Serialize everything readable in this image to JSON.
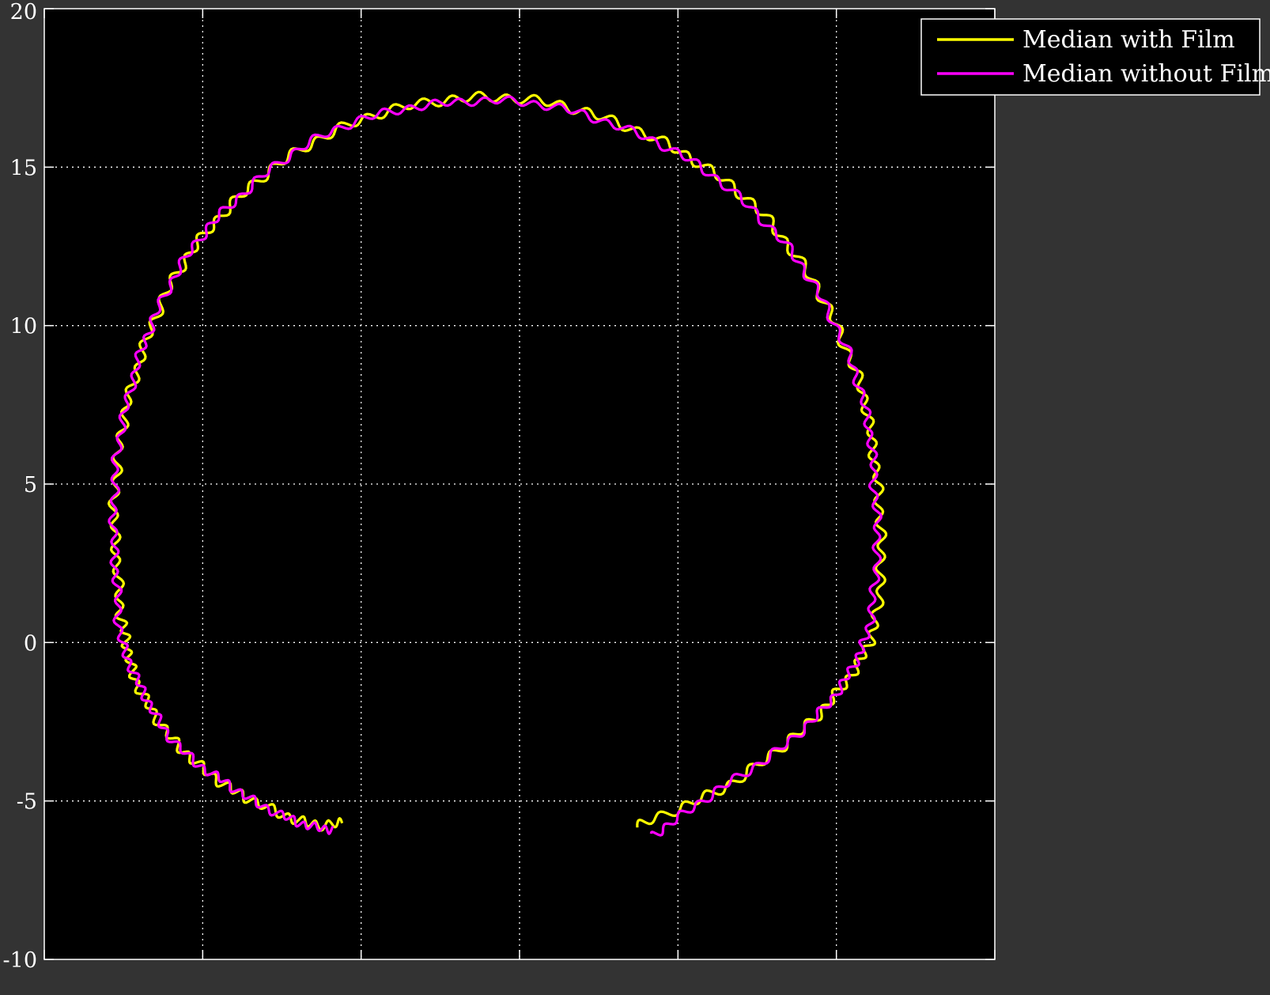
{
  "chart_data": {
    "type": "line",
    "title": "",
    "xlabel": "",
    "ylabel": "",
    "xlim": [
      -12,
      18
    ],
    "ylim": [
      -10,
      20
    ],
    "x_ticks": [
      -12,
      -7,
      -2,
      3,
      8,
      13,
      18
    ],
    "y_ticks": [
      -10,
      -5,
      0,
      5,
      10,
      15,
      20
    ],
    "y_tick_labels": [
      "-10",
      "-5",
      "0",
      "5",
      "10",
      "15",
      "20"
    ],
    "grid": true,
    "legend_position": "top-right",
    "colors": {
      "background": "#333333",
      "axes": "#000000",
      "axis_line": "#ffffff",
      "grid": "#ffffff"
    },
    "series": [
      {
        "name": "Median with Film",
        "color": "#ffff00",
        "points": [
          [
            -2.6,
            -5.7
          ],
          [
            -3.4,
            -5.75
          ],
          [
            -4.3,
            -5.5
          ],
          [
            -5.4,
            -5.0
          ],
          [
            -6.3,
            -4.5
          ],
          [
            -7.2,
            -3.8
          ],
          [
            -8.0,
            -3.0
          ],
          [
            -8.7,
            -2.0
          ],
          [
            -9.2,
            -1.0
          ],
          [
            -9.4,
            0.0
          ],
          [
            -9.6,
            1.0
          ],
          [
            -9.7,
            2.5
          ],
          [
            -9.8,
            4.0
          ],
          [
            -9.7,
            5.5
          ],
          [
            -9.5,
            7.0
          ],
          [
            -9.1,
            8.5
          ],
          [
            -8.6,
            10.0
          ],
          [
            -7.9,
            11.5
          ],
          [
            -7.0,
            12.8
          ],
          [
            -5.9,
            14.0
          ],
          [
            -4.6,
            15.1
          ],
          [
            -3.1,
            16.0
          ],
          [
            -1.4,
            16.7
          ],
          [
            0.5,
            17.1
          ],
          [
            2.3,
            17.2
          ],
          [
            4.1,
            17.0
          ],
          [
            5.8,
            16.5
          ],
          [
            7.5,
            15.8
          ],
          [
            9.0,
            14.9
          ],
          [
            10.4,
            13.8
          ],
          [
            11.5,
            12.5
          ],
          [
            12.5,
            11.0
          ],
          [
            13.2,
            9.5
          ],
          [
            13.8,
            8.0
          ],
          [
            14.1,
            6.5
          ],
          [
            14.3,
            5.0
          ],
          [
            14.4,
            3.5
          ],
          [
            14.4,
            2.0
          ],
          [
            14.2,
            0.5
          ],
          [
            13.8,
            -0.5
          ],
          [
            13.1,
            -1.5
          ],
          [
            12.2,
            -2.5
          ],
          [
            11.0,
            -3.5
          ],
          [
            9.6,
            -4.5
          ],
          [
            8.1,
            -5.2
          ],
          [
            6.7,
            -5.8
          ]
        ]
      },
      {
        "name": "Median without Film",
        "color": "#ff00ff",
        "points": [
          [
            -2.9,
            -5.9
          ],
          [
            -3.6,
            -5.8
          ],
          [
            -4.4,
            -5.5
          ],
          [
            -5.4,
            -5.0
          ],
          [
            -6.3,
            -4.4
          ],
          [
            -7.2,
            -3.8
          ],
          [
            -8.1,
            -2.9
          ],
          [
            -8.7,
            -1.9
          ],
          [
            -9.2,
            -0.9
          ],
          [
            -9.6,
            0.2
          ],
          [
            -9.7,
            1.6
          ],
          [
            -9.8,
            3.0
          ],
          [
            -9.8,
            4.5
          ],
          [
            -9.7,
            6.0
          ],
          [
            -9.4,
            7.5
          ],
          [
            -9.0,
            9.0
          ],
          [
            -8.5,
            10.3
          ],
          [
            -7.8,
            11.7
          ],
          [
            -6.9,
            13.0
          ],
          [
            -5.8,
            14.1
          ],
          [
            -4.5,
            15.2
          ],
          [
            -3.0,
            16.1
          ],
          [
            -1.3,
            16.7
          ],
          [
            0.5,
            17.0
          ],
          [
            2.3,
            17.1
          ],
          [
            4.1,
            16.9
          ],
          [
            5.8,
            16.4
          ],
          [
            7.5,
            15.7
          ],
          [
            9.0,
            14.8
          ],
          [
            10.4,
            13.6
          ],
          [
            11.6,
            12.3
          ],
          [
            12.5,
            10.9
          ],
          [
            13.3,
            9.3
          ],
          [
            13.8,
            7.8
          ],
          [
            14.1,
            6.3
          ],
          [
            14.2,
            4.8
          ],
          [
            14.3,
            3.3
          ],
          [
            14.2,
            1.8
          ],
          [
            14.0,
            0.4
          ],
          [
            13.6,
            -0.6
          ],
          [
            13.0,
            -1.6
          ],
          [
            12.1,
            -2.6
          ],
          [
            10.9,
            -3.6
          ],
          [
            9.5,
            -4.5
          ],
          [
            8.2,
            -5.4
          ],
          [
            7.2,
            -6.1
          ]
        ]
      }
    ]
  }
}
